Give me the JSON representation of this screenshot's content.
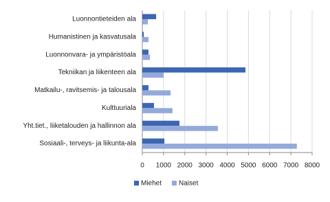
{
  "chart_data": {
    "type": "bar",
    "orientation": "horizontal",
    "categories": [
      "Luonnontieteiden ala",
      "Humanistinen ja kasvatusala",
      "Luonnonvara- ja ympäristöala",
      "Tekniikan ja liikenteen ala",
      "Matkailu-, ravitsemis- ja talousala",
      "Kulttuuriala",
      "Yht.tiet., liiketalouden ja hallinnon ala",
      "Sosiaali-, terveys- ja liikunta-ala"
    ],
    "series": [
      {
        "name": "Miehet",
        "color": "#3d66b3",
        "values": [
          650,
          70,
          290,
          4860,
          290,
          550,
          1750,
          1040
        ]
      },
      {
        "name": "Naiset",
        "color": "#94a9dc",
        "values": [
          260,
          290,
          360,
          1000,
          1330,
          1420,
          3560,
          7280
        ]
      }
    ],
    "xlim": [
      0,
      8000
    ],
    "xticks": [
      0,
      1000,
      2000,
      3000,
      4000,
      5000,
      6000,
      7000,
      8000
    ],
    "grid": true,
    "legend": "bottom"
  }
}
